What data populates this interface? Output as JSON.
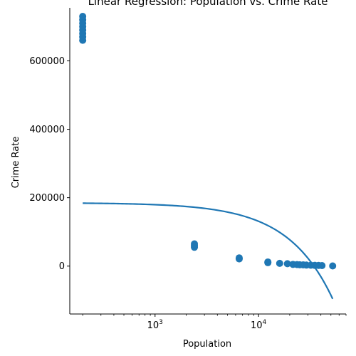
{
  "chart_data": {
    "type": "scatter",
    "title": "Linear Regression: Population vs. Crime Rate",
    "xlabel": "Population",
    "ylabel": "Crime Rate",
    "xscale": "log",
    "xlim": [
      150,
      70000
    ],
    "ylim": [
      -140000,
      755000
    ],
    "grid": false,
    "x_ticks": [
      {
        "value": 1000,
        "base": "10",
        "exp": "3"
      },
      {
        "value": 10000,
        "base": "10",
        "exp": "4"
      }
    ],
    "y_ticks": [
      {
        "value": 0,
        "label": "0"
      },
      {
        "value": 200000,
        "label": "200000"
      },
      {
        "value": 400000,
        "label": "400000"
      },
      {
        "value": 600000,
        "label": "600000"
      }
    ],
    "colors": {
      "points": "#1f77b4",
      "line": "#1f77b4"
    },
    "series": [
      {
        "kind": "scatter",
        "points": [
          {
            "x": 200,
            "y": 660000
          },
          {
            "x": 200,
            "y": 670000
          },
          {
            "x": 200,
            "y": 680000
          },
          {
            "x": 200,
            "y": 690000
          },
          {
            "x": 200,
            "y": 700000
          },
          {
            "x": 200,
            "y": 710000
          },
          {
            "x": 200,
            "y": 720000
          },
          {
            "x": 200,
            "y": 730000
          },
          {
            "x": 2400,
            "y": 55000
          },
          {
            "x": 2400,
            "y": 60000
          },
          {
            "x": 2400,
            "y": 65000
          },
          {
            "x": 6500,
            "y": 21000
          },
          {
            "x": 6500,
            "y": 24000
          },
          {
            "x": 12300,
            "y": 10000
          },
          {
            "x": 12300,
            "y": 12000
          },
          {
            "x": 16000,
            "y": 8000
          },
          {
            "x": 19000,
            "y": 7000
          },
          {
            "x": 21500,
            "y": 5000
          },
          {
            "x": 23500,
            "y": 4500
          },
          {
            "x": 25000,
            "y": 4000
          },
          {
            "x": 27000,
            "y": 3500
          },
          {
            "x": 29000,
            "y": 3000
          },
          {
            "x": 32000,
            "y": 2500
          },
          {
            "x": 35000,
            "y": 2200
          },
          {
            "x": 38000,
            "y": 2000
          },
          {
            "x": 41000,
            "y": 1500
          },
          {
            "x": 52000,
            "y": 500
          }
        ]
      },
      {
        "kind": "line",
        "intercept": 185000,
        "slope": -5.4,
        "x_range": [
          200,
          52000
        ]
      }
    ]
  }
}
